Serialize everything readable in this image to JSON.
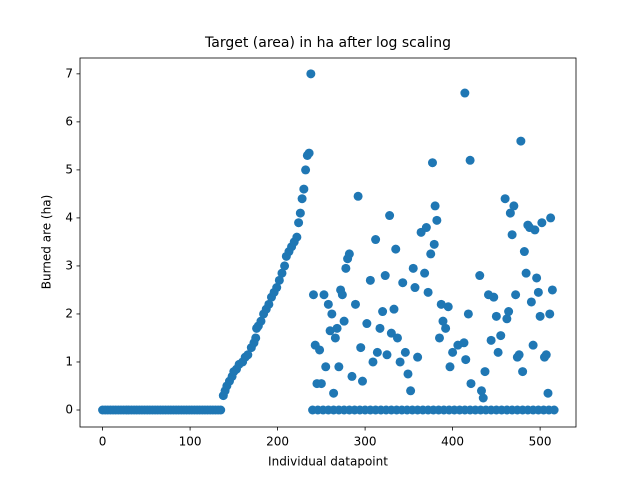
{
  "chart_data": {
    "type": "scatter",
    "title": "Target (area) in ha after log scaling",
    "x_label": "Individual datapoint",
    "y_label": "Burned are (ha)",
    "xlim": [
      -25.8,
      541
    ],
    "ylim": [
      -0.354,
      7.33
    ],
    "xticks": [
      0,
      100,
      200,
      300,
      400,
      500
    ],
    "yticks": [
      0,
      1,
      2,
      3,
      4,
      5,
      6,
      7
    ],
    "color": "#1f77b4",
    "x": [
      0,
      3,
      6,
      9,
      12,
      15,
      18,
      21,
      24,
      27,
      30,
      33,
      36,
      39,
      42,
      45,
      48,
      51,
      54,
      57,
      60,
      63,
      66,
      69,
      72,
      75,
      78,
      81,
      84,
      87,
      90,
      93,
      96,
      99,
      102,
      105,
      108,
      111,
      114,
      117,
      120,
      123,
      126,
      129,
      132,
      135,
      138,
      140,
      142,
      145,
      148,
      150,
      153,
      156,
      160,
      163,
      166,
      170,
      173,
      175,
      176,
      178,
      181,
      184,
      187,
      190,
      193,
      196,
      199,
      202,
      205,
      208,
      210,
      213,
      216,
      219,
      222,
      224,
      226,
      228,
      230,
      232,
      234,
      236,
      238,
      241,
      243,
      245,
      248,
      250,
      253,
      255,
      258,
      260,
      262,
      264,
      266,
      268,
      270,
      272,
      274,
      276,
      278,
      280,
      282,
      285,
      289,
      292,
      295,
      297,
      302,
      306,
      309,
      312,
      314,
      317,
      320,
      323,
      325,
      328,
      330,
      333,
      335,
      337,
      340,
      343,
      346,
      349,
      352,
      355,
      357,
      360,
      364,
      377,
      368,
      370,
      372,
      375,
      379,
      380,
      382,
      385,
      387,
      389,
      392,
      395,
      397,
      400,
      414,
      406,
      420,
      421,
      413,
      415,
      418,
      431,
      433,
      435,
      437,
      441,
      444,
      447,
      450,
      460,
      452,
      455,
      462,
      464,
      466,
      468,
      470,
      472,
      474,
      478,
      476,
      480,
      482,
      484,
      486,
      488,
      490,
      492,
      494,
      496,
      498,
      500,
      502,
      505,
      507,
      509,
      511,
      512,
      514,
      240,
      246,
      252,
      258,
      264,
      270,
      276,
      282,
      288,
      294,
      300,
      306,
      312,
      318,
      324,
      330,
      336,
      342,
      348,
      354,
      360,
      366,
      372,
      378,
      384,
      390,
      396,
      402,
      408,
      414,
      420,
      426,
      432,
      438,
      444,
      450,
      456,
      462,
      468,
      474,
      480,
      486,
      492,
      498,
      504,
      510,
      516
    ],
    "values": [
      0,
      0,
      0,
      0,
      0,
      0,
      0,
      0,
      0,
      0,
      0,
      0,
      0,
      0,
      0,
      0,
      0,
      0,
      0,
      0,
      0,
      0,
      0,
      0,
      0,
      0,
      0,
      0,
      0,
      0,
      0,
      0,
      0,
      0,
      0,
      0,
      0,
      0,
      0,
      0,
      0,
      0,
      0,
      0,
      0,
      0,
      0.3,
      0.4,
      0.5,
      0.6,
      0.7,
      0.8,
      0.85,
      0.95,
      1.0,
      1.1,
      1.15,
      1.3,
      1.4,
      1.5,
      1.7,
      1.75,
      1.85,
      2.0,
      2.1,
      2.2,
      2.35,
      2.45,
      2.55,
      2.7,
      2.85,
      3.0,
      3.2,
      3.3,
      3.4,
      3.5,
      3.6,
      3.9,
      4.1,
      4.4,
      4.6,
      5.0,
      5.3,
      5.35,
      7.0,
      2.4,
      1.35,
      0.55,
      1.25,
      0.55,
      2.4,
      0.9,
      2.2,
      1.65,
      2.0,
      0.35,
      1.5,
      1.7,
      0.9,
      2.5,
      2.4,
      1.85,
      2.95,
      3.15,
      3.25,
      0.7,
      2.2,
      4.45,
      1.3,
      0.6,
      1.8,
      2.7,
      1.0,
      3.55,
      1.2,
      1.7,
      2.05,
      2.8,
      1.15,
      4.05,
      1.6,
      2.1,
      3.35,
      1.5,
      1.0,
      2.65,
      1.2,
      0.75,
      0.4,
      2.95,
      2.55,
      1.1,
      3.7,
      5.15,
      2.85,
      3.8,
      2.45,
      3.25,
      3.45,
      4.25,
      3.95,
      1.5,
      2.2,
      1.85,
      1.7,
      2.15,
      0.9,
      1.2,
      6.6,
      1.35,
      5.2,
      0.55,
      1.4,
      1.05,
      2.0,
      2.8,
      0.4,
      0.25,
      0.8,
      2.4,
      1.45,
      2.35,
      1.95,
      4.4,
      1.2,
      1.55,
      1.9,
      2.05,
      4.1,
      3.65,
      4.25,
      2.4,
      1.1,
      5.6,
      1.15,
      0.8,
      3.3,
      2.85,
      3.85,
      3.8,
      2.25,
      1.35,
      3.75,
      2.75,
      2.45,
      1.95,
      3.9,
      1.1,
      1.15,
      0.35,
      2.0,
      4.0,
      2.5,
      0,
      0,
      0,
      0,
      0,
      0,
      0,
      0,
      0,
      0,
      0,
      0,
      0,
      0,
      0,
      0,
      0,
      0,
      0,
      0,
      0,
      0,
      0,
      0,
      0,
      0,
      0,
      0,
      0,
      0,
      0,
      0,
      0,
      0,
      0,
      0,
      0,
      0,
      0,
      0,
      0,
      0,
      0,
      0,
      0,
      0,
      0
    ]
  }
}
